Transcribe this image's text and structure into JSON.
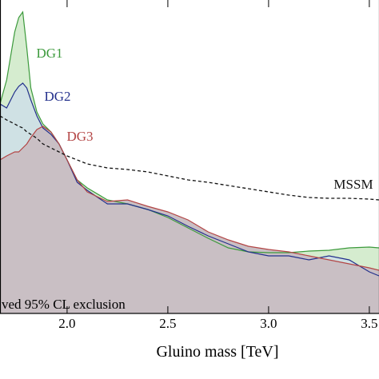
{
  "chart_data": {
    "type": "line",
    "xlabel": "Gluino mass [TeV]",
    "annotation": "ved 95% CL exclusion",
    "xlim": [
      1.667,
      3.548
    ],
    "xticks": [
      {
        "value": 2,
        "label": "2.0"
      },
      2.5,
      {
        "value": 3,
        "label": "3.0"
      },
      3.5
    ],
    "ylim": [
      0,
      392
    ],
    "x": [
      1.667,
      1.7,
      1.74,
      1.76,
      1.78,
      1.8,
      1.82,
      1.85,
      1.88,
      1.92,
      1.96,
      2.0,
      2.05,
      2.1,
      2.2,
      2.3,
      2.4,
      2.5,
      2.6,
      2.7,
      2.8,
      2.9,
      3.0,
      3.1,
      3.2,
      3.3,
      3.4,
      3.5,
      3.548
    ],
    "series": [
      {
        "name": "DG1",
        "color": "#3c9a3c",
        "fill": "#d5eccf",
        "dashed": false,
        "values": [
          262,
          292,
          352,
          370,
          377,
          332,
          282,
          252,
          237,
          227,
          212,
          192,
          167,
          157,
          142,
          137,
          130,
          120,
          107,
          94,
          82,
          77,
          76,
          76,
          78,
          79,
          82,
          83,
          82
        ]
      },
      {
        "name": "DG2",
        "color": "#23308c",
        "fill": "#cfe1e4",
        "dashed": false,
        "values": [
          262,
          257,
          277,
          284,
          288,
          282,
          267,
          247,
          232,
          224,
          212,
          192,
          164,
          154,
          137,
          137,
          130,
          122,
          109,
          97,
          87,
          77,
          72,
          72,
          67,
          72,
          67,
          52,
          47
        ]
      },
      {
        "name": "DG3",
        "color": "#b34545",
        "fill": "#c9bfc4",
        "dashed": false,
        "values": [
          192,
          197,
          202,
          202,
          207,
          212,
          220,
          230,
          234,
          227,
          212,
          192,
          167,
          152,
          140,
          142,
          134,
          127,
          117,
          102,
          92,
          84,
          80,
          77,
          72,
          67,
          62,
          57,
          54
        ]
      },
      {
        "name": "MSSM",
        "color": "#111111",
        "fill": null,
        "dashed": true,
        "values": [
          247,
          242,
          237,
          234,
          232,
          227,
          224,
          219,
          212,
          207,
          202,
          197,
          192,
          187,
          182,
          180,
          177,
          172,
          167,
          164,
          160,
          156,
          152,
          148,
          145,
          144,
          144,
          143,
          142
        ]
      }
    ]
  }
}
